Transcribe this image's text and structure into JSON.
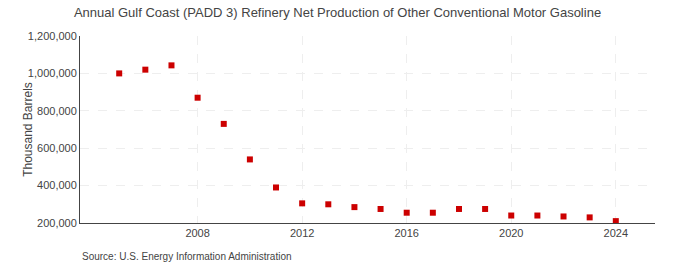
{
  "chart_data": {
    "type": "scatter",
    "title": "Annual Gulf Coast (PADD 3) Refinery Net Production of Other Conventional Motor Gasoline",
    "y_label": "Thousand Barrels",
    "annotations": [
      "Source: U.S. Energy Information Administration"
    ],
    "x": [
      2005,
      2006,
      2007,
      2008,
      2009,
      2010,
      2011,
      2012,
      2013,
      2014,
      2015,
      2016,
      2017,
      2018,
      2019,
      2020,
      2021,
      2022,
      2023,
      2024
    ],
    "values": [
      1000000,
      1020000,
      1043000,
      870000,
      730000,
      540000,
      390000,
      305000,
      300000,
      285000,
      275000,
      255000,
      255000,
      275000,
      275000,
      240000,
      240000,
      235000,
      230000,
      210000
    ],
    "color": "#cc0000",
    "marker": "square",
    "xlim": [
      2003.5,
      2025.5
    ],
    "xticks": [
      2008,
      2012,
      2016,
      2020,
      2024
    ],
    "ylim": [
      200000,
      1200000
    ],
    "yticks": [
      {
        "value": 200000,
        "label": "200,000"
      },
      {
        "value": 400000,
        "label": "400,000"
      },
      {
        "value": 600000,
        "label": "600,000"
      },
      {
        "value": 800000,
        "label": "800,000"
      },
      {
        "value": 1000000,
        "label": "1,000,000"
      },
      {
        "value": 1200000,
        "label": "1,200,000"
      }
    ],
    "grid": true
  }
}
